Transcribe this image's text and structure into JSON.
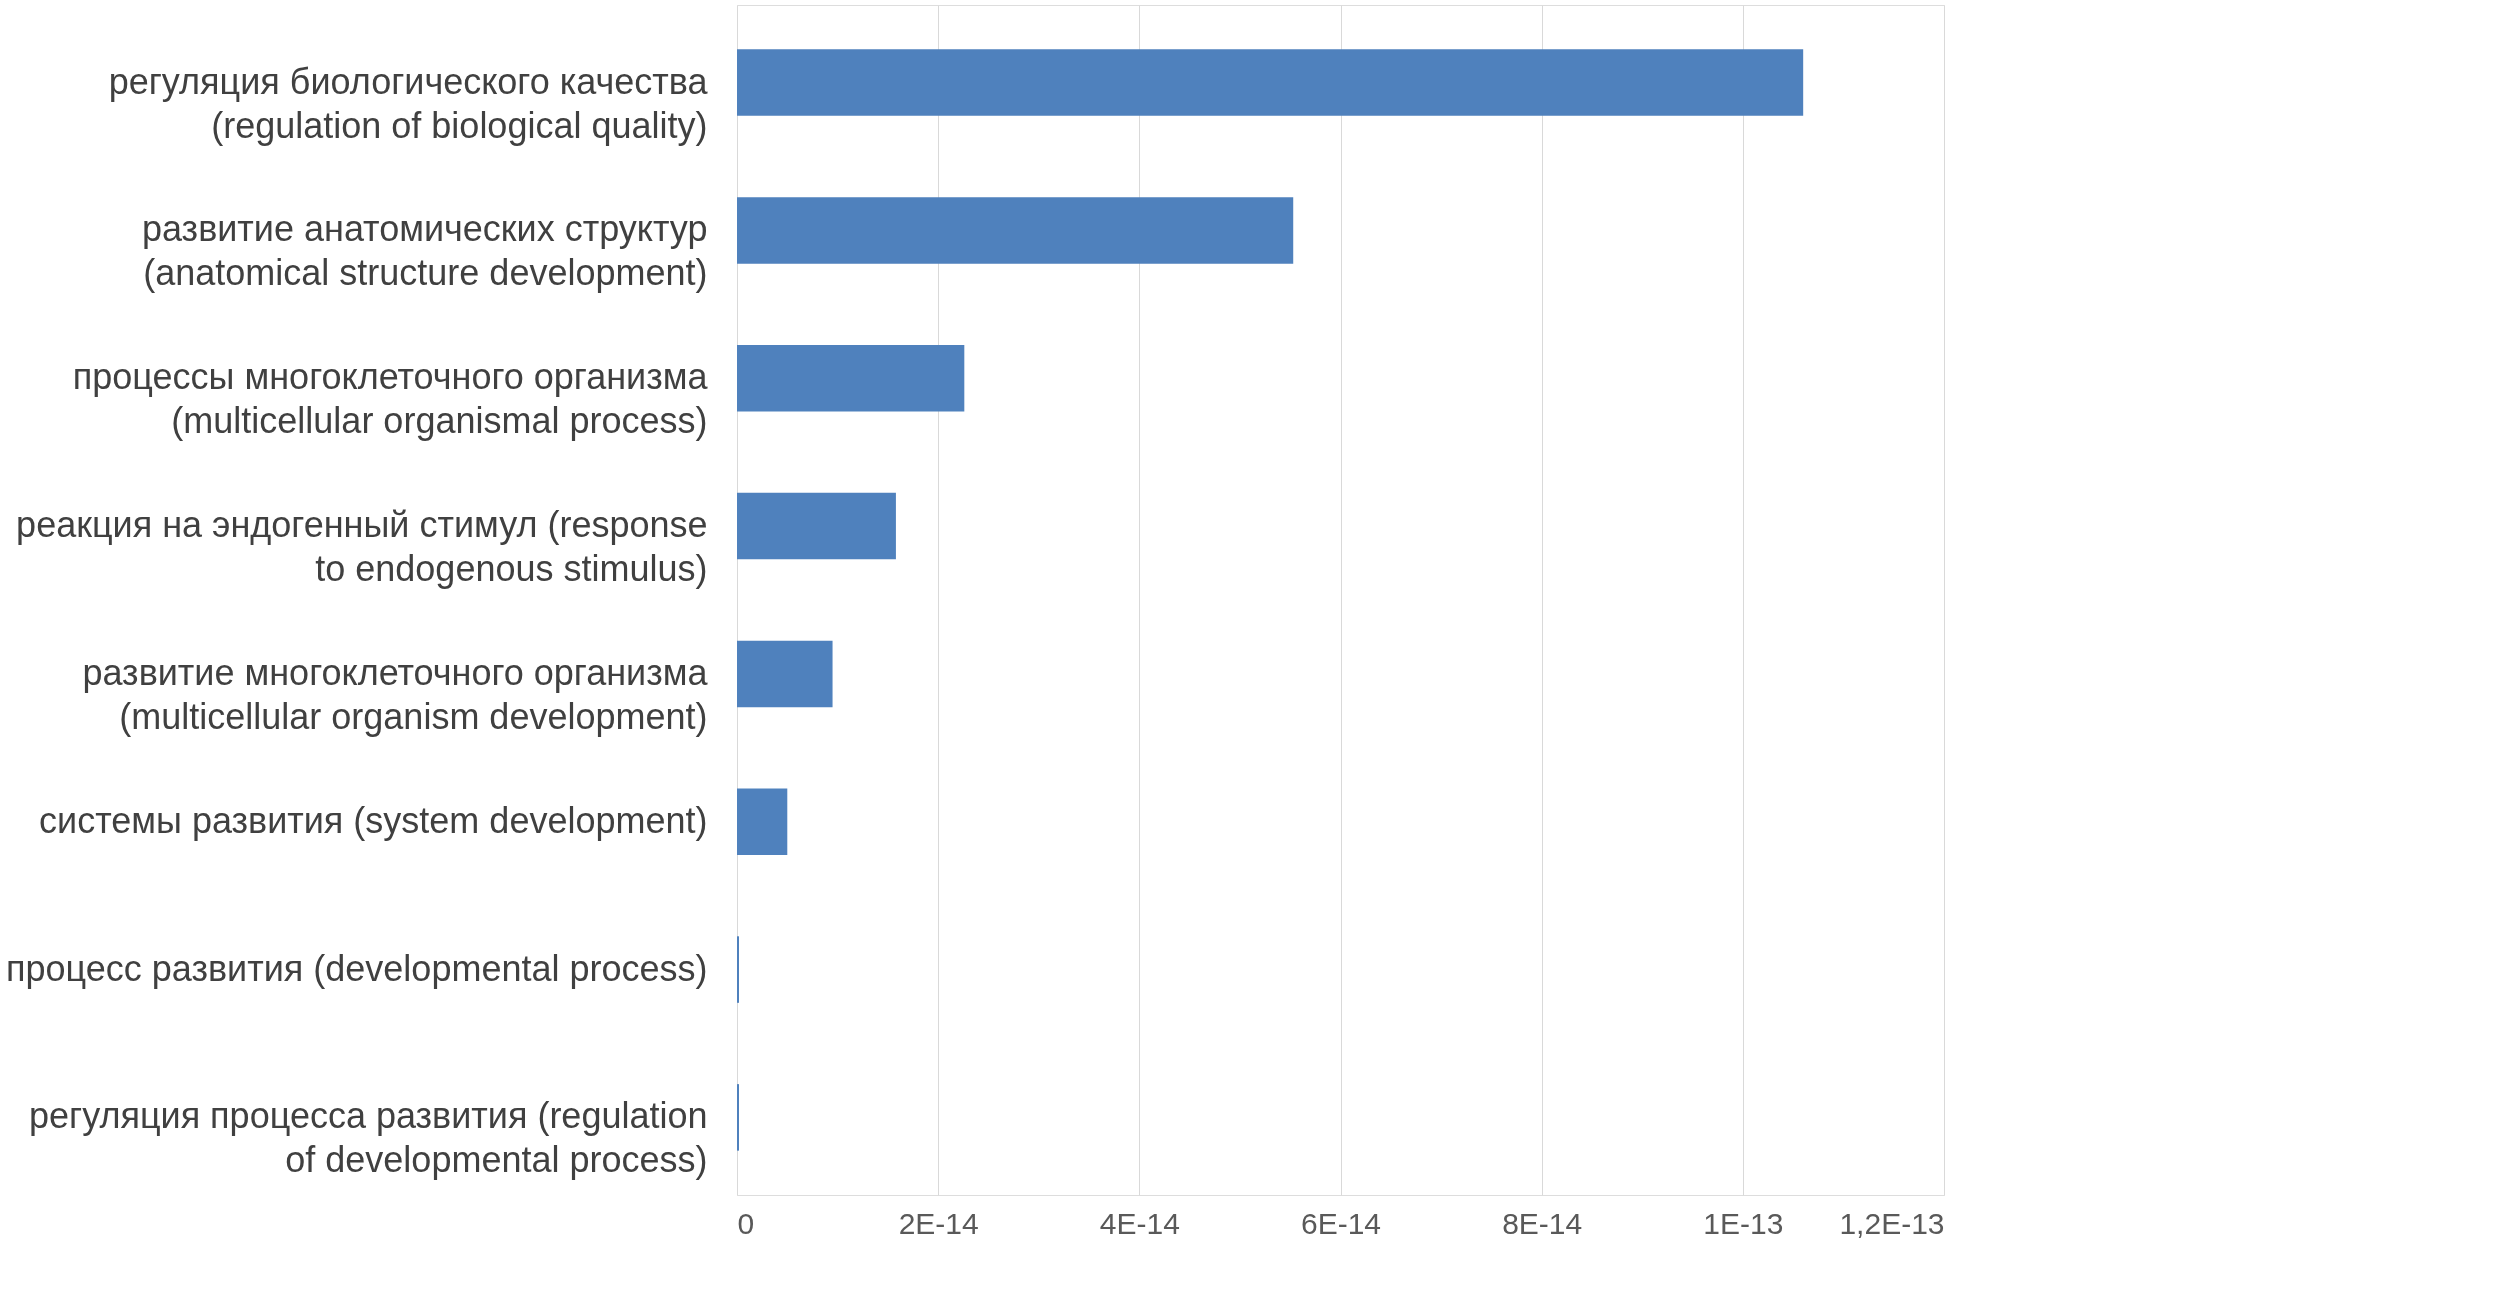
{
  "chart_data": {
    "type": "bar",
    "orientation": "horizontal",
    "categories": [
      "регуляция биологического качества (regulation of biological quality)",
      "развитие анатомических структур (anatomical structure development)",
      "процессы многоклеточного организма (multicellular organismal process)",
      "реакция на эндогенный стимул (response to endogenous stimulus)",
      "развитие многоклеточного организма (multicellular organism development)",
      "системы развития (system development)",
      "процесс развития (developmental process)",
      "регуляция процесса развития (regulation of developmental process)"
    ],
    "values": [
      1.06e-13,
      5.53e-14,
      2.26e-14,
      1.58e-14,
      9.5e-15,
      5e-15,
      2e-16,
      2e-16
    ],
    "color": "#4f81bd",
    "xlim": [
      0,
      1.2e-13
    ],
    "xticks": [
      0,
      {
        "value": 2e-14,
        "label": "2E-14"
      },
      {
        "value": 4e-14,
        "label": "4E-14"
      },
      {
        "value": 6e-14,
        "label": "6E-14"
      },
      {
        "value": 8e-14,
        "label": "8E-14"
      },
      {
        "value": 1e-13,
        "label": "1E-13"
      },
      {
        "value": 1.2e-13,
        "label": "1,2E-13"
      }
    ],
    "grid": "x"
  }
}
